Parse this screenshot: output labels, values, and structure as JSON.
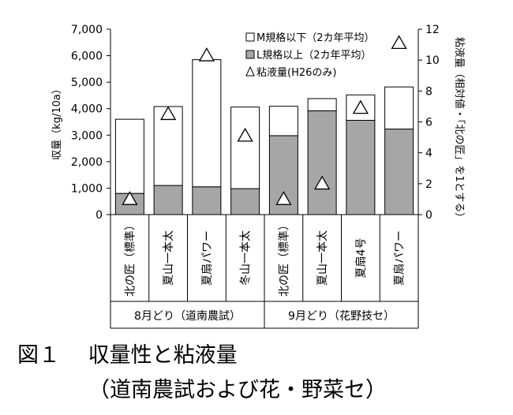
{
  "chart_data": {
    "type": "bar",
    "stacked": true,
    "categories": [
      "北の匠（標準）",
      "夏山一本太",
      "夏扇パワー",
      "冬山一本太",
      "北の匠（標準）",
      "夏山一本太",
      "夏扇4号",
      "夏扇パワー"
    ],
    "groups": [
      {
        "label": "8月どり（道南農試）",
        "span": [
          0,
          3
        ]
      },
      {
        "label": "9月どり（花野技セ）",
        "span": [
          4,
          7
        ]
      }
    ],
    "series": [
      {
        "name": "L規格以上（2カ年平均）",
        "kind": "bar-bottom",
        "color": "#a6a6a6",
        "values": [
          800,
          1100,
          1050,
          980,
          2980,
          3920,
          3560,
          3230
        ]
      },
      {
        "name": "M規格以下（2カ年平均）",
        "kind": "bar-top",
        "color": "#ffffff",
        "values": [
          2800,
          2980,
          4800,
          3080,
          1110,
          460,
          960,
          1590
        ]
      },
      {
        "name": "粘液量(H26のみ)",
        "kind": "marker",
        "axis": "right",
        "values": [
          1.0,
          6.5,
          10.3,
          5.1,
          1.0,
          2.0,
          6.9,
          11.1
        ]
      }
    ],
    "ylabel": "収量（kg/10a）",
    "ylim": [
      0,
      7000
    ],
    "yticks": [
      "0",
      "1,000",
      "2,000",
      "3,000",
      "4,000",
      "5,000",
      "6,000",
      "7,000"
    ],
    "y2label": "粘液量（相対値・「北の匠」を1とする）",
    "y2lim": [
      0,
      12
    ],
    "y2ticks": [
      "0",
      "2",
      "4",
      "6",
      "8",
      "10",
      "12"
    ],
    "legend": {
      "position": "top-right",
      "entries": [
        {
          "symbol": "□",
          "text": "M規格以下（2カ年平均）"
        },
        {
          "symbol": "■",
          "text": "L規格以上（2カ年平均）"
        },
        {
          "symbol": "△",
          "text": "粘液量(H26のみ)"
        }
      ]
    },
    "grid": false
  },
  "caption": {
    "line1": "図１　 収量性と粘液量",
    "line2": "（道南農試および花・野菜セ）"
  }
}
